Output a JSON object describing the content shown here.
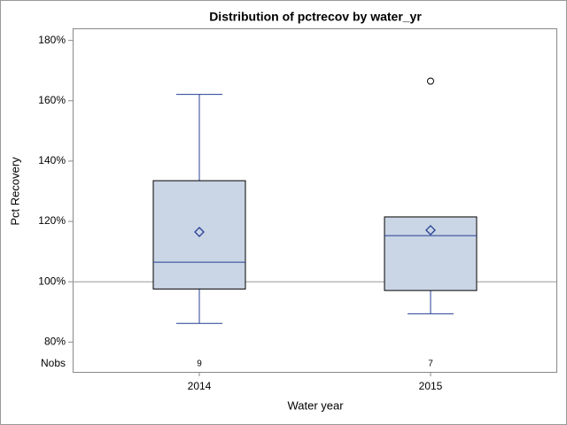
{
  "chart_data": {
    "type": "box",
    "title": "Distribution of pctrecov by water_yr",
    "x_label": "Water year",
    "y_label": "Pct Recovery",
    "categories": [
      "2014",
      "2015"
    ],
    "boxes": [
      {
        "min": 86.2,
        "q1": 97.6,
        "median": 106.5,
        "q3": 133.5,
        "max": 162.1,
        "mean": 116.5,
        "outliers": []
      },
      {
        "min": 89.4,
        "q1": 97.1,
        "median": 115.3,
        "q3": 121.5,
        "max": 121.5,
        "mean": 117.1,
        "outliers": [
          166.5
        ]
      }
    ],
    "nobs_label": "Nobs",
    "nobs": [
      9,
      7
    ],
    "refline": 100,
    "box_color": "#cad5e5",
    "line_color": "#233f94",
    "ylim": [
      76,
      184
    ],
    "yticks": [
      {
        "value": 80,
        "label": "80%"
      },
      {
        "value": 100,
        "label": "100%"
      },
      {
        "value": 120,
        "label": "120%"
      },
      {
        "value": 140,
        "label": "140%"
      },
      {
        "value": 160,
        "label": "160%"
      },
      {
        "value": 180,
        "label": "180%"
      }
    ]
  }
}
